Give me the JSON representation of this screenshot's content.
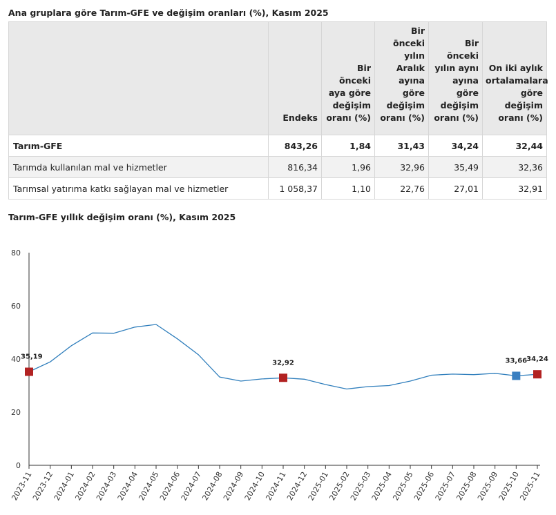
{
  "table": {
    "title": "Ana gruplara göre Tarım-GFE ve değişim oranları (%), Kasım 2025",
    "headers": [
      "",
      "Endeks",
      "Bir önceki aya göre değişim oranı (%)",
      "Bir önceki yılın Aralık ayına göre değişim oranı (%)",
      "Bir önceki yılın aynı ayına göre değişim oranı (%)",
      "On iki aylık ortalamalara göre değişim oranı (%)"
    ],
    "rows": [
      [
        "Tarım-GFE",
        "843,26",
        "1,84",
        "31,43",
        "34,24",
        "32,44"
      ],
      [
        "Tarımda kullanılan mal ve hizmetler",
        "816,34",
        "1,96",
        "32,96",
        "35,49",
        "32,36"
      ],
      [
        "Tarımsal yatırıma katkı sağlayan mal ve hizmetler",
        "1 058,37",
        "1,10",
        "22,76",
        "27,01",
        "32,91"
      ]
    ]
  },
  "chart_data": {
    "type": "line",
    "title": "Tarım-GFE yıllık değişim oranı (%), Kasım 2025",
    "categories": [
      "2023-11",
      "2023-12",
      "2024-01",
      "2024-02",
      "2024-03",
      "2024-04",
      "2024-05",
      "2024-06",
      "2024-07",
      "2024-08",
      "2024-09",
      "2024-10",
      "2024-11",
      "2024-12",
      "2025-01",
      "2025-02",
      "2025-03",
      "2025-04",
      "2025-05",
      "2025-06",
      "2025-07",
      "2025-08",
      "2025-09",
      "2025-10",
      "2025-11"
    ],
    "series": [
      {
        "values": [
          35.19,
          38.9,
          45.0,
          49.8,
          49.7,
          52.0,
          53.0,
          47.6,
          41.6,
          33.2,
          31.7,
          32.5,
          32.92,
          32.4,
          30.4,
          28.7,
          29.6,
          30.0,
          31.7,
          33.9,
          34.3,
          34.1,
          34.6,
          33.66,
          34.24
        ]
      }
    ],
    "ylim": [
      0,
      80
    ],
    "yticks": [
      0,
      20,
      40,
      60,
      80
    ],
    "grid": false,
    "line_color": "#2f7ebc",
    "markers": [
      {
        "index": 0,
        "label": "35,19",
        "color": "#b22222"
      },
      {
        "index": 12,
        "label": "32,92",
        "color": "#b22222"
      },
      {
        "index": 23,
        "label": "33,66",
        "color": "#3a7fc1"
      },
      {
        "index": 24,
        "label": "34,24",
        "color": "#b22222"
      }
    ]
  }
}
